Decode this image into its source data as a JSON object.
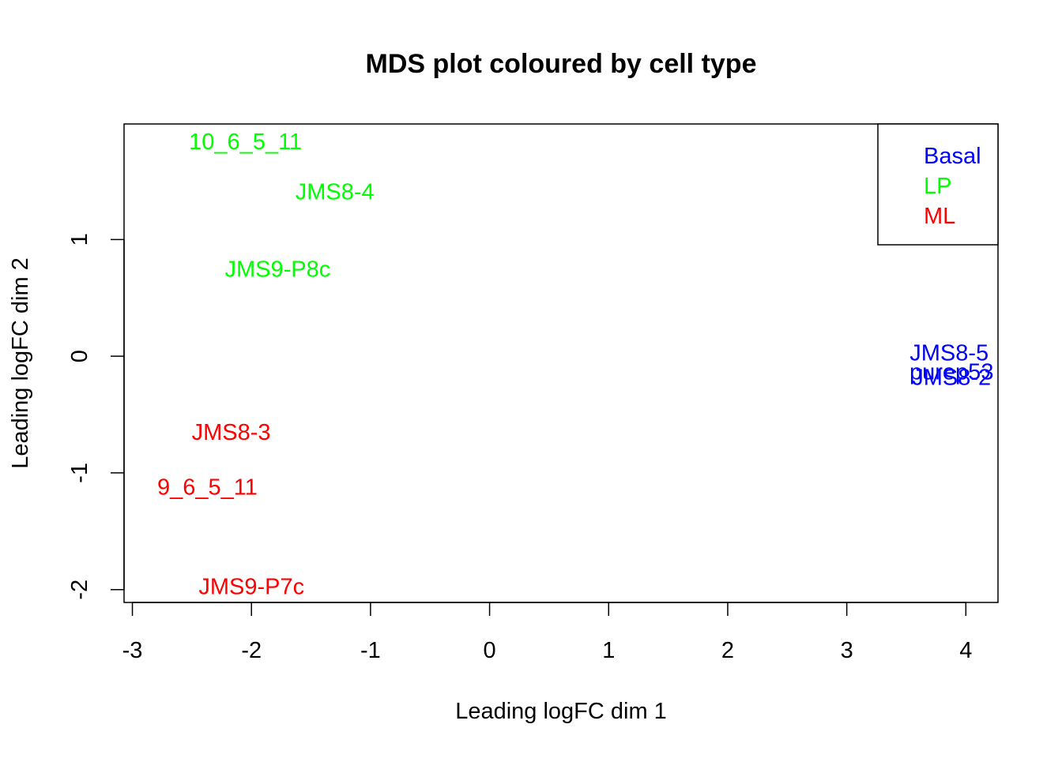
{
  "chart_data": {
    "type": "scatter",
    "title": "MDS plot coloured by cell type",
    "xlabel": "Leading logFC dim 1",
    "ylabel": "Leading logFC dim 2",
    "xlim": [
      -3.07,
      4.27
    ],
    "ylim": [
      -2.11,
      1.99
    ],
    "xticks": [
      -3,
      -2,
      -1,
      0,
      1,
      2,
      3,
      4
    ],
    "yticks": [
      -2,
      -1,
      0,
      1
    ],
    "point_style": "text-labels",
    "colors": {
      "Basal": "#0000ff",
      "LP": "#00ff00",
      "ML": "#ff0000"
    },
    "points": [
      {
        "label": "10_6_5_11",
        "group": "LP",
        "x": -2.05,
        "y": 1.84
      },
      {
        "label": "JMS8-4",
        "group": "LP",
        "x": -1.3,
        "y": 1.41
      },
      {
        "label": "JMS9-P8c",
        "group": "LP",
        "x": -1.78,
        "y": 0.75
      },
      {
        "label": "JMS8-5",
        "group": "Basal",
        "x": 3.86,
        "y": 0.03
      },
      {
        "label": "purep53",
        "group": "Basal",
        "x": 3.88,
        "y": -0.13
      },
      {
        "label": "JMS8-2",
        "group": "Basal",
        "x": 3.88,
        "y": -0.18
      },
      {
        "label": "JMS8-3",
        "group": "ML",
        "x": -2.17,
        "y": -0.65
      },
      {
        "label": "9_6_5_11",
        "group": "ML",
        "x": -2.37,
        "y": -1.12
      },
      {
        "label": "JMS9-P7c",
        "group": "ML",
        "x": -2.0,
        "y": -1.97
      }
    ],
    "legend": {
      "position": "top-right",
      "entries": [
        "Basal",
        "LP",
        "ML"
      ]
    },
    "grid": false
  }
}
